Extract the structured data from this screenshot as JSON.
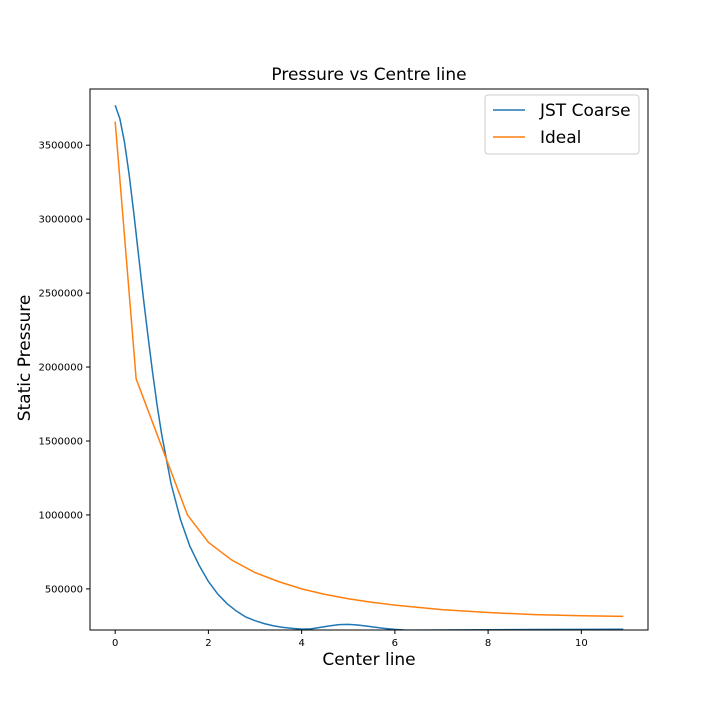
{
  "chart_data": {
    "type": "line",
    "title": "Pressure vs Centre line",
    "xlabel": "Center line",
    "ylabel": "Static Pressure",
    "xlim": [
      -0.54,
      11.43
    ],
    "ylim": [
      222000,
      3880000
    ],
    "xticks": [
      0,
      2,
      4,
      6,
      8,
      10
    ],
    "xtick_labels": [
      "0",
      "2",
      "4",
      "6",
      "8",
      "10"
    ],
    "yticks": [
      500000,
      1000000,
      1500000,
      2000000,
      2500000,
      3000000,
      3500000
    ],
    "ytick_labels": [
      "500000",
      "1000000",
      "1500000",
      "2000000",
      "2500000",
      "3000000",
      "3500000"
    ],
    "grid": false,
    "legend_position": "top-right",
    "series": [
      {
        "name": "JST Coarse",
        "color": "#1f77b4",
        "x": [
          0,
          0.1,
          0.2,
          0.3,
          0.4,
          0.5,
          0.6,
          0.7,
          0.8,
          0.9,
          1.0,
          1.2,
          1.4,
          1.6,
          1.8,
          2.0,
          2.2,
          2.4,
          2.6,
          2.8,
          3.0,
          3.2,
          3.4,
          3.6,
          3.8,
          4.0,
          4.2,
          4.4,
          4.6,
          4.8,
          5.0,
          5.2,
          5.4,
          5.6,
          5.8,
          6.0,
          6.2,
          6.5,
          7.0,
          7.5,
          8.0,
          9.0,
          10.0,
          10.9
        ],
        "y": [
          3770000,
          3680000,
          3520000,
          3300000,
          3040000,
          2760000,
          2480000,
          2220000,
          1970000,
          1740000,
          1540000,
          1210000,
          970000,
          790000,
          660000,
          550000,
          465000,
          400000,
          350000,
          310000,
          285000,
          265000,
          250000,
          240000,
          233000,
          228000,
          230000,
          240000,
          250000,
          258000,
          260000,
          256000,
          248000,
          240000,
          232000,
          226000,
          222000,
          221000,
          222000,
          223000,
          224000,
          225000,
          226000,
          227000
        ]
      },
      {
        "name": "Ideal",
        "color": "#ff7f0e",
        "x": [
          0,
          0.45,
          1.55,
          2.0,
          2.5,
          3.0,
          3.5,
          4.0,
          4.5,
          5.0,
          5.5,
          6.0,
          7.0,
          8.0,
          9.0,
          10.0,
          10.9
        ],
        "y": [
          3660000,
          1920000,
          1000000,
          815000,
          695000,
          610000,
          550000,
          500000,
          463000,
          433000,
          410000,
          390000,
          360000,
          340000,
          326000,
          318000,
          314000
        ]
      }
    ]
  }
}
